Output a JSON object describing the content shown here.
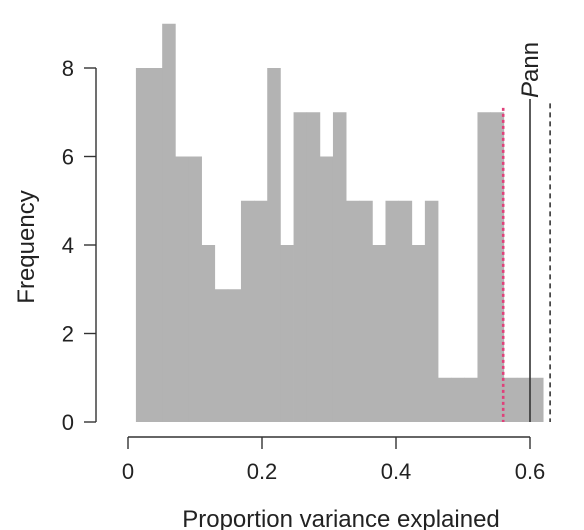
{
  "chart_data": {
    "type": "bar",
    "title": "",
    "xlabel": "Proportion variance explained",
    "ylabel": "Frequency",
    "xlim": [
      0,
      0.63
    ],
    "ylim": [
      0,
      9
    ],
    "x_ticks": [
      0,
      0.2,
      0.4,
      0.6
    ],
    "x_tick_labels": [
      "0",
      "0.2",
      "0.4",
      "0.6"
    ],
    "y_ticks": [
      0,
      2,
      4,
      6,
      8
    ],
    "y_tick_labels": [
      "0",
      "2",
      "4",
      "6",
      "8"
    ],
    "bin_width": 0.0196,
    "bin_starts": [
      0.0118,
      0.0314,
      0.051,
      0.0706,
      0.0902,
      0.1098,
      0.1294,
      0.149,
      0.1686,
      0.1882,
      0.2078,
      0.2275,
      0.2471,
      0.2667,
      0.2863,
      0.3059,
      0.3255,
      0.3451,
      0.3647,
      0.3843,
      0.4039,
      0.4235,
      0.4431,
      0.4627,
      0.4824,
      0.502,
      0.5216,
      0.5412,
      0.5608,
      0.5804,
      0.6
    ],
    "values": [
      8,
      8,
      9,
      6,
      6,
      4,
      3,
      3,
      5,
      5,
      8,
      4,
      7,
      7,
      6,
      7,
      5,
      5,
      4,
      5,
      5,
      4,
      5,
      1,
      1,
      1,
      7,
      7,
      1,
      1,
      1
    ],
    "reference_lines": [
      {
        "x": 0.56,
        "style": "dotted",
        "color": "#e0407a"
      },
      {
        "x": 0.6,
        "style": "solid",
        "color": "#333333"
      },
      {
        "x": 0.63,
        "style": "dashed",
        "color": "#333333"
      }
    ],
    "annotation": {
      "prefix": "P",
      "suffix": "ann"
    },
    "grid": false,
    "legend": "none",
    "colors": {
      "bars": "#b3b3b3",
      "axis": "#333333"
    }
  }
}
